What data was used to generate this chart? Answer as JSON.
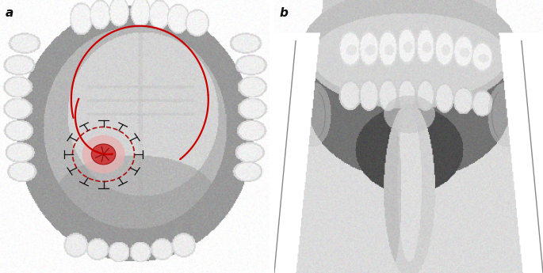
{
  "figure_width": 6.85,
  "figure_height": 3.45,
  "dpi": 100,
  "background_color": "#ffffff",
  "panel_a_label": "a",
  "panel_b_label": "b",
  "label_fontsize": 11,
  "label_fontstyle": "italic"
}
